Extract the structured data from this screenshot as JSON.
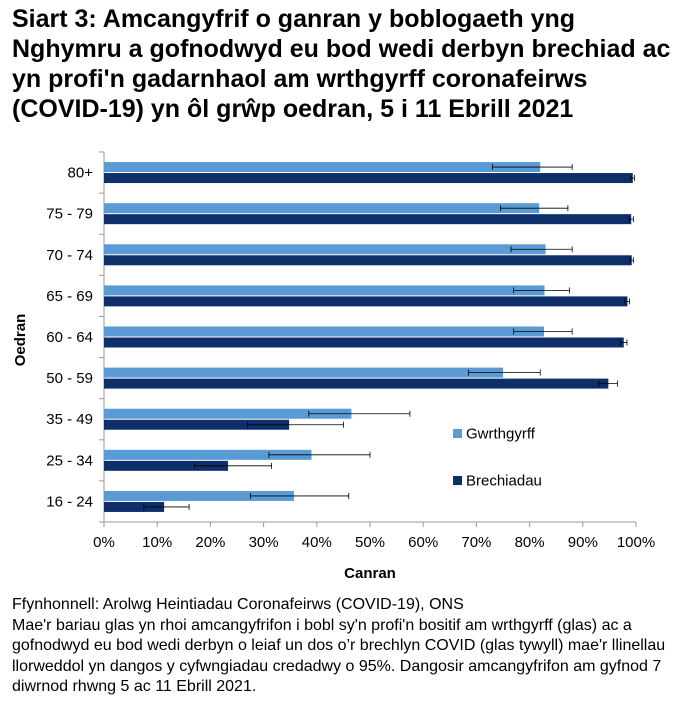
{
  "title": "Siart 3: Amcangyfrif o ganran y boblogaeth yng Nghymru a gofnodwyd eu bod wedi derbyn brechiad ac yn profi'n gadarnhaol am wrthgyrff coronafeirws (COVID-19) yn ôl grŵp oedran, 5 i 11 Ebrill 2021",
  "footer": {
    "source": "Ffynhonnell: Arolwg Heintiadau Coronafeirws (COVID-19), ONS",
    "note": "Mae'r bariau glas yn rhoi amcangyfrifon i bobl sy'n profi'n bositif am wrthgyrff (glas) ac a gofnodwyd eu bod wedi derbyn o leiaf un dos o’r brechlyn COVID (glas tywyll) mae'r llinellau llorweddol yn dangos y cyfwngiadau credadwy o 95%. Dangosir amcangyfrifon am gyfnod 7 diwrnod rhwng 5 ac 11 Ebrill 2021."
  },
  "chart_data": {
    "type": "bar",
    "orientation": "horizontal",
    "categories": [
      "80+",
      "75 - 79",
      "70 - 74",
      "65 - 69",
      "60 - 64",
      "50 - 59",
      "35 - 49",
      "25 - 34",
      "16 - 24"
    ],
    "series": [
      {
        "name": "Gwrthgyrff",
        "color": "#5b9bd5",
        "values": [
          82.0,
          81.8,
          83.0,
          82.8,
          82.7,
          75.0,
          46.5,
          39.0,
          35.7
        ],
        "ci_low": [
          73.0,
          74.5,
          76.5,
          77.0,
          77.0,
          68.5,
          38.5,
          31.0,
          27.5
        ],
        "ci_high": [
          88.0,
          87.2,
          88.0,
          87.5,
          88.0,
          82.0,
          57.5,
          50.0,
          46.0
        ]
      },
      {
        "name": "Brechiadau",
        "color": "#0f2f6b",
        "values": [
          99.4,
          99.1,
          99.2,
          98.4,
          97.7,
          94.8,
          34.8,
          23.3,
          11.3
        ],
        "ci_low": [
          99.0,
          98.7,
          98.9,
          97.9,
          97.0,
          93.0,
          27.0,
          17.0,
          7.5
        ],
        "ci_high": [
          99.7,
          99.5,
          99.5,
          98.8,
          98.3,
          96.5,
          45.0,
          31.5,
          16.0
        ]
      }
    ],
    "xlabel": "Canran",
    "ylabel": "Oedran",
    "xlim": [
      0,
      100
    ],
    "xticks": [
      0,
      10,
      20,
      30,
      40,
      50,
      60,
      70,
      80,
      90,
      100
    ],
    "xtick_labels": [
      "0%",
      "10%",
      "20%",
      "30%",
      "40%",
      "50%",
      "60%",
      "70%",
      "80%",
      "90%",
      "100%"
    ],
    "legend_position": "right",
    "grid": false
  }
}
